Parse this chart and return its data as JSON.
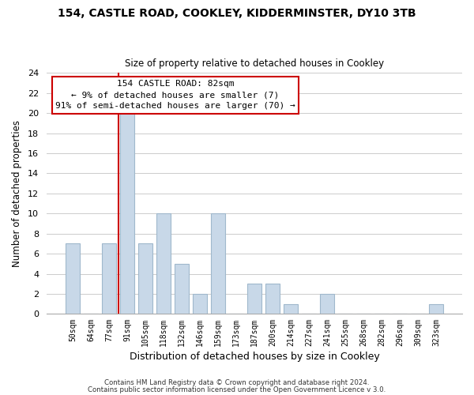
{
  "title1": "154, CASTLE ROAD, COOKLEY, KIDDERMINSTER, DY10 3TB",
  "title2": "Size of property relative to detached houses in Cookley",
  "xlabel": "Distribution of detached houses by size in Cookley",
  "ylabel": "Number of detached properties",
  "bins": [
    "50sqm",
    "64sqm",
    "77sqm",
    "91sqm",
    "105sqm",
    "118sqm",
    "132sqm",
    "146sqm",
    "159sqm",
    "173sqm",
    "187sqm",
    "200sqm",
    "214sqm",
    "227sqm",
    "241sqm",
    "255sqm",
    "268sqm",
    "282sqm",
    "296sqm",
    "309sqm",
    "323sqm"
  ],
  "counts": [
    7,
    0,
    7,
    20,
    7,
    10,
    5,
    2,
    10,
    0,
    3,
    3,
    1,
    0,
    2,
    0,
    0,
    0,
    0,
    0,
    1
  ],
  "bar_color": "#c8d8e8",
  "bar_edge_color": "#a0b8cc",
  "annotation_box_edge": "#cc0000",
  "annotation_line_color": "#cc0000",
  "annotation_text_line1": "154 CASTLE ROAD: 82sqm",
  "annotation_text_line2": "← 9% of detached houses are smaller (7)",
  "annotation_text_line3": "91% of semi-detached houses are larger (70) →",
  "footer1": "Contains HM Land Registry data © Crown copyright and database right 2024.",
  "footer2": "Contains public sector information licensed under the Open Government Licence v 3.0.",
  "ylim": [
    0,
    24
  ],
  "yticks": [
    0,
    2,
    4,
    6,
    8,
    10,
    12,
    14,
    16,
    18,
    20,
    22,
    24
  ],
  "background_color": "#ffffff",
  "grid_color": "#cccccc"
}
